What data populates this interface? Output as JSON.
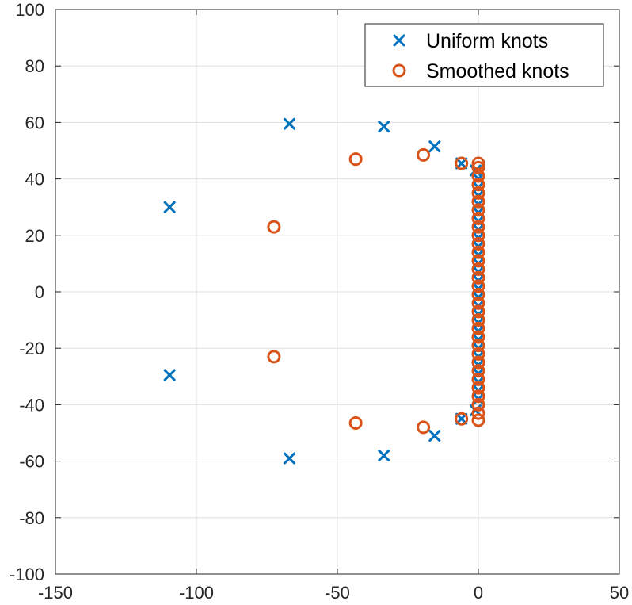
{
  "chart_data": {
    "type": "scatter",
    "title": "",
    "xlabel": "",
    "ylabel": "",
    "xlim": [
      -150,
      50
    ],
    "ylim": [
      -100,
      100
    ],
    "xticks": [
      -150,
      -100,
      -50,
      0,
      50
    ],
    "yticks": [
      -100,
      -80,
      -60,
      -40,
      -20,
      0,
      20,
      40,
      60,
      80,
      100
    ],
    "grid": true,
    "legend_position": "top-right",
    "series": [
      {
        "name": "Uniform knots",
        "marker": "x",
        "color": "#0072BD",
        "points": [
          [
            -109.5,
            30.0
          ],
          [
            -109.5,
            -29.5
          ],
          [
            -67,
            59.5
          ],
          [
            -67,
            -59.0
          ],
          [
            -33.5,
            58.5
          ],
          [
            -33.5,
            -58.0
          ],
          [
            -15.5,
            51.5
          ],
          [
            -15.5,
            -51.0
          ],
          [
            -6,
            45.5
          ],
          [
            -6,
            -45.0
          ],
          [
            -1,
            43
          ],
          [
            -1,
            -42
          ],
          [
            0,
            40
          ],
          [
            0,
            37
          ],
          [
            0,
            34
          ],
          [
            0,
            31
          ],
          [
            0,
            28
          ],
          [
            0,
            25
          ],
          [
            0,
            22
          ],
          [
            0,
            19
          ],
          [
            0,
            16
          ],
          [
            0,
            13
          ],
          [
            0,
            10
          ],
          [
            0,
            7
          ],
          [
            0,
            4
          ],
          [
            0,
            1
          ],
          [
            0,
            -2
          ],
          [
            0,
            -5
          ],
          [
            0,
            -8
          ],
          [
            0,
            -11
          ],
          [
            0,
            -14
          ],
          [
            0,
            -17
          ],
          [
            0,
            -20
          ],
          [
            0,
            -23
          ],
          [
            0,
            -26
          ],
          [
            0,
            -29
          ],
          [
            0,
            -32
          ],
          [
            0,
            -35
          ],
          [
            0,
            -38
          ]
        ]
      },
      {
        "name": "Smoothed knots",
        "marker": "o",
        "color": "#D95319",
        "points": [
          [
            -72.5,
            23.0
          ],
          [
            -72.5,
            -23.0
          ],
          [
            -43.5,
            47.0
          ],
          [
            -43.5,
            -46.5
          ],
          [
            -19.5,
            48.5
          ],
          [
            -19.5,
            -48.0
          ],
          [
            -6,
            45.5
          ],
          [
            -6,
            -45.0
          ],
          [
            0,
            45.5
          ],
          [
            0,
            44
          ],
          [
            0,
            41
          ],
          [
            0,
            38
          ],
          [
            0,
            35
          ],
          [
            0,
            32
          ],
          [
            0,
            29
          ],
          [
            0,
            26
          ],
          [
            0,
            23
          ],
          [
            0,
            20
          ],
          [
            0,
            17
          ],
          [
            0,
            14
          ],
          [
            0,
            11
          ],
          [
            0,
            8
          ],
          [
            0,
            5
          ],
          [
            0,
            2
          ],
          [
            0,
            -1
          ],
          [
            0,
            -4
          ],
          [
            0,
            -7
          ],
          [
            0,
            -10
          ],
          [
            0,
            -13
          ],
          [
            0,
            -16
          ],
          [
            0,
            -19
          ],
          [
            0,
            -22
          ],
          [
            0,
            -25
          ],
          [
            0,
            -28
          ],
          [
            0,
            -31
          ],
          [
            0,
            -34
          ],
          [
            0,
            -37
          ],
          [
            0,
            -40
          ],
          [
            0,
            -43
          ],
          [
            0,
            -45.5
          ]
        ]
      }
    ]
  }
}
